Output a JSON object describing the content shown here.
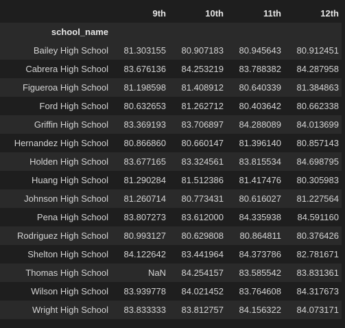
{
  "table": {
    "index_name": "school_name",
    "columns": [
      "9th",
      "10th",
      "11th",
      "12th"
    ],
    "rows": [
      {
        "name": "Bailey High School",
        "values": [
          "81.303155",
          "80.907183",
          "80.945643",
          "80.912451"
        ]
      },
      {
        "name": "Cabrera High School",
        "values": [
          "83.676136",
          "84.253219",
          "83.788382",
          "84.287958"
        ]
      },
      {
        "name": "Figueroa High School",
        "values": [
          "81.198598",
          "81.408912",
          "80.640339",
          "81.384863"
        ]
      },
      {
        "name": "Ford High School",
        "values": [
          "80.632653",
          "81.262712",
          "80.403642",
          "80.662338"
        ]
      },
      {
        "name": "Griffin High School",
        "values": [
          "83.369193",
          "83.706897",
          "84.288089",
          "84.013699"
        ]
      },
      {
        "name": "Hernandez High School",
        "values": [
          "80.866860",
          "80.660147",
          "81.396140",
          "80.857143"
        ]
      },
      {
        "name": "Holden High School",
        "values": [
          "83.677165",
          "83.324561",
          "83.815534",
          "84.698795"
        ]
      },
      {
        "name": "Huang High School",
        "values": [
          "81.290284",
          "81.512386",
          "81.417476",
          "80.305983"
        ]
      },
      {
        "name": "Johnson High School",
        "values": [
          "81.260714",
          "80.773431",
          "80.616027",
          "81.227564"
        ]
      },
      {
        "name": "Pena High School",
        "values": [
          "83.807273",
          "83.612000",
          "84.335938",
          "84.591160"
        ]
      },
      {
        "name": "Rodriguez High School",
        "values": [
          "80.993127",
          "80.629808",
          "80.864811",
          "80.376426"
        ]
      },
      {
        "name": "Shelton High School",
        "values": [
          "84.122642",
          "83.441964",
          "84.373786",
          "82.781671"
        ]
      },
      {
        "name": "Thomas High School",
        "values": [
          "NaN",
          "84.254157",
          "83.585542",
          "83.831361"
        ]
      },
      {
        "name": "Wilson High School",
        "values": [
          "83.939778",
          "84.021452",
          "83.764608",
          "84.317673"
        ]
      },
      {
        "name": "Wright High School",
        "values": [
          "83.833333",
          "83.812757",
          "84.156322",
          "84.073171"
        ]
      }
    ]
  }
}
